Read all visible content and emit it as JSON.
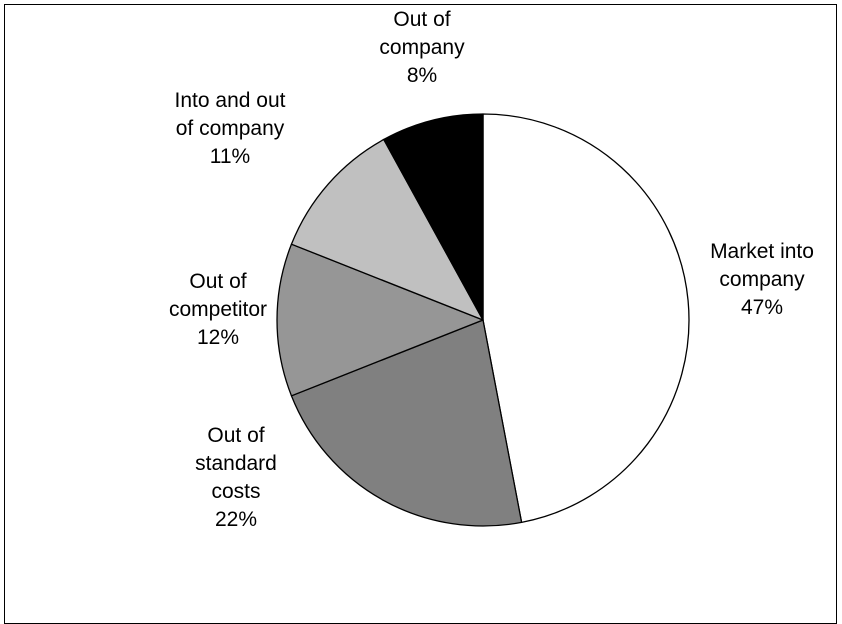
{
  "chart_data": {
    "type": "pie",
    "title": "",
    "start_angle_deg": 0,
    "direction": "clockwise",
    "slices": [
      {
        "label": [
          "Market into",
          "company"
        ],
        "percent_text": "47%",
        "value": 47,
        "color": "#ffffff"
      },
      {
        "label": [
          "Out of",
          "standard",
          "costs"
        ],
        "percent_text": "22%",
        "value": 22,
        "color": "#808080"
      },
      {
        "label": [
          "Out of",
          "competitor"
        ],
        "percent_text": "12%",
        "value": 12,
        "color": "#969696"
      },
      {
        "label": [
          "Into and out",
          "of company"
        ],
        "percent_text": "11%",
        "value": 11,
        "color": "#c0c0c0"
      },
      {
        "label": [
          "Out of",
          "company"
        ],
        "percent_text": "8%",
        "value": 8,
        "color": "#000000"
      }
    ]
  }
}
